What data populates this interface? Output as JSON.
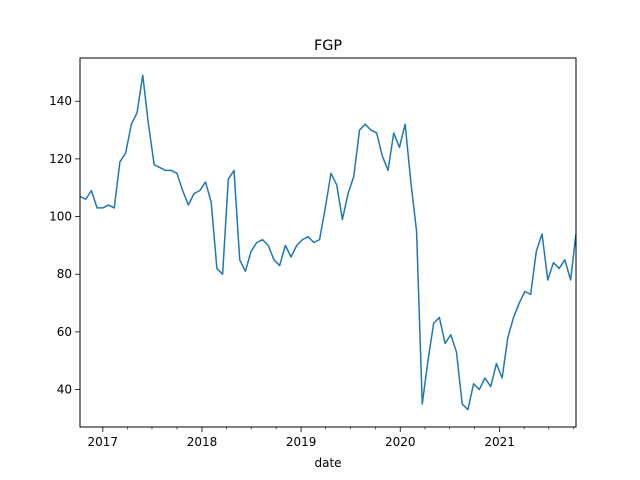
{
  "chart_data": {
    "type": "line",
    "title": "FGP",
    "xlabel": "date",
    "ylabel": "",
    "xlim": [
      "2016-10-09",
      "2021-10-09"
    ],
    "ylim": [
      27,
      155
    ],
    "x_ticks": [
      {
        "date": "2017-01-01",
        "label": "2017"
      },
      {
        "date": "2018-01-01",
        "label": "2018"
      },
      {
        "date": "2019-01-01",
        "label": "2019"
      },
      {
        "date": "2020-01-01",
        "label": "2020"
      },
      {
        "date": "2021-01-01",
        "label": "2021"
      }
    ],
    "y_ticks": [
      40,
      60,
      80,
      100,
      120,
      140
    ],
    "grid": false,
    "legend": "none",
    "series_color": "#1f77b4",
    "series": [
      {
        "x": [
          "2016-10-09",
          "2016-10-30",
          "2016-11-20",
          "2016-12-11",
          "2017-01-01",
          "2017-01-22",
          "2017-02-12",
          "2017-03-05",
          "2017-03-26",
          "2017-04-16",
          "2017-05-07",
          "2017-05-28",
          "2017-06-18",
          "2017-07-09",
          "2017-07-30",
          "2017-08-20",
          "2017-09-10",
          "2017-10-01",
          "2017-10-22",
          "2017-11-12",
          "2017-12-03",
          "2017-12-24",
          "2018-01-14",
          "2018-02-04",
          "2018-02-25",
          "2018-03-18",
          "2018-04-08",
          "2018-04-29",
          "2018-05-20",
          "2018-06-10",
          "2018-07-01",
          "2018-07-22",
          "2018-08-12",
          "2018-09-02",
          "2018-09-23",
          "2018-10-14",
          "2018-11-04",
          "2018-11-25",
          "2018-12-16",
          "2019-01-06",
          "2019-01-27",
          "2019-02-17",
          "2019-03-10",
          "2019-03-31",
          "2019-04-21",
          "2019-05-12",
          "2019-06-02",
          "2019-06-23",
          "2019-07-14",
          "2019-08-04",
          "2019-08-25",
          "2019-09-15",
          "2019-10-06",
          "2019-10-27",
          "2019-11-17",
          "2019-12-08",
          "2019-12-29",
          "2020-01-19",
          "2020-02-09",
          "2020-03-01",
          "2020-03-22",
          "2020-04-12",
          "2020-05-03",
          "2020-05-24",
          "2020-06-14",
          "2020-07-05",
          "2020-07-26",
          "2020-08-16",
          "2020-09-06",
          "2020-09-27",
          "2020-10-18",
          "2020-11-08",
          "2020-11-29",
          "2020-12-20",
          "2021-01-10",
          "2021-01-31",
          "2021-02-21",
          "2021-03-14",
          "2021-04-04",
          "2021-04-25",
          "2021-05-16",
          "2021-06-06",
          "2021-06-27",
          "2021-07-18",
          "2021-08-08",
          "2021-08-29",
          "2021-09-19",
          "2021-10-09"
        ],
        "values": [
          107,
          106,
          109,
          103,
          103,
          104,
          103,
          119,
          122,
          132,
          136,
          149,
          132,
          118,
          117,
          116,
          116,
          115,
          109,
          104,
          108,
          109,
          112,
          105,
          82,
          80,
          113,
          116,
          85,
          81,
          88,
          91,
          92,
          90,
          85,
          83,
          90,
          86,
          90,
          92,
          93,
          91,
          92,
          103,
          115,
          111,
          99,
          108,
          114,
          130,
          132,
          130,
          129,
          121,
          116,
          129,
          124,
          132,
          112,
          95,
          35,
          50,
          63,
          65,
          56,
          59,
          53,
          35,
          33,
          42,
          40,
          44,
          41,
          49,
          44,
          58,
          65,
          70,
          74,
          73,
          88,
          94,
          78,
          84,
          82,
          85,
          78,
          94
        ]
      }
    ]
  }
}
